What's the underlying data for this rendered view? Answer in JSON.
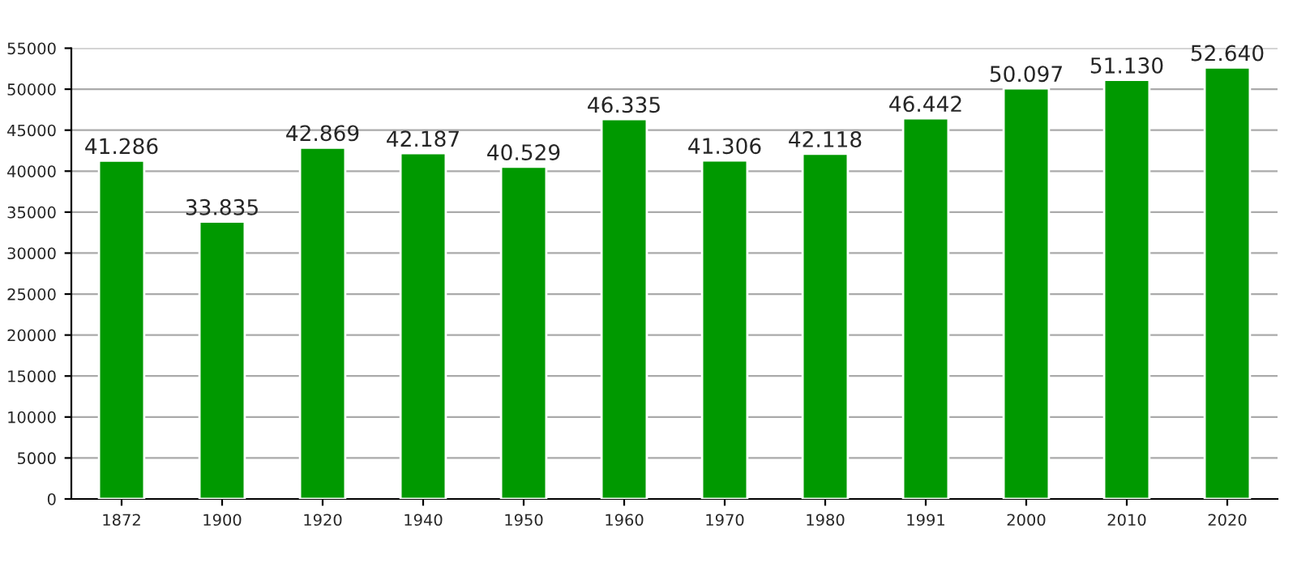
{
  "chart_data": {
    "type": "bar",
    "categories": [
      "1872",
      "1900",
      "1920",
      "1940",
      "1950",
      "1960",
      "1970",
      "1980",
      "1991",
      "2000",
      "2010",
      "2020"
    ],
    "values": [
      41286,
      33835,
      42869,
      42187,
      40529,
      46335,
      41306,
      42118,
      46442,
      50097,
      51130,
      52640
    ],
    "value_labels": [
      "41.286",
      "33.835",
      "42.869",
      "42.187",
      "40.529",
      "46.335",
      "41.306",
      "42.118",
      "46.442",
      "50.097",
      "51.130",
      "52.640"
    ],
    "color": "#009900",
    "ylim": [
      0,
      55000
    ],
    "yticks": [
      0,
      5000,
      10000,
      15000,
      20000,
      25000,
      30000,
      35000,
      40000,
      45000,
      50000,
      55000
    ],
    "grid": "y"
  }
}
